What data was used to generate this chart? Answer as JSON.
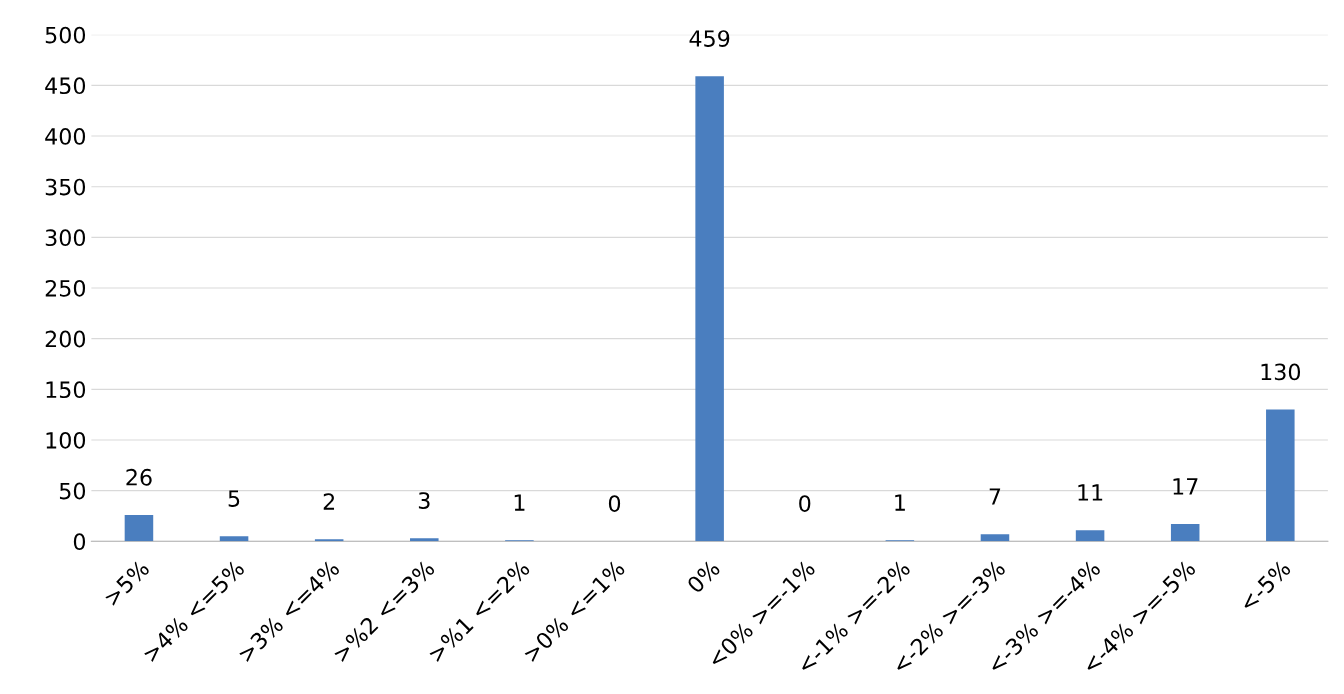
{
  "chart_data": {
    "type": "bar",
    "categories": [
      ">5%",
      ">4% <=5%",
      ">3% <=4%",
      ">%2 <=3%",
      ">%1 <=2%",
      ">0% <=1%",
      "0%",
      "<0% >=-1%",
      "<-1% >=-2%",
      "<-2% >=-3%",
      "<-3% >=-4%",
      "<-4% >=-5%",
      "<-5%"
    ],
    "values": [
      26,
      5,
      2,
      3,
      1,
      0,
      459,
      0,
      1,
      7,
      11,
      17,
      130
    ],
    "color": "#4a7ebf",
    "ylim": [
      0,
      500
    ],
    "yticks": [
      0,
      50,
      100,
      150,
      200,
      250,
      300,
      350,
      400,
      450,
      500
    ],
    "grid": "y",
    "data_labels": true
  }
}
